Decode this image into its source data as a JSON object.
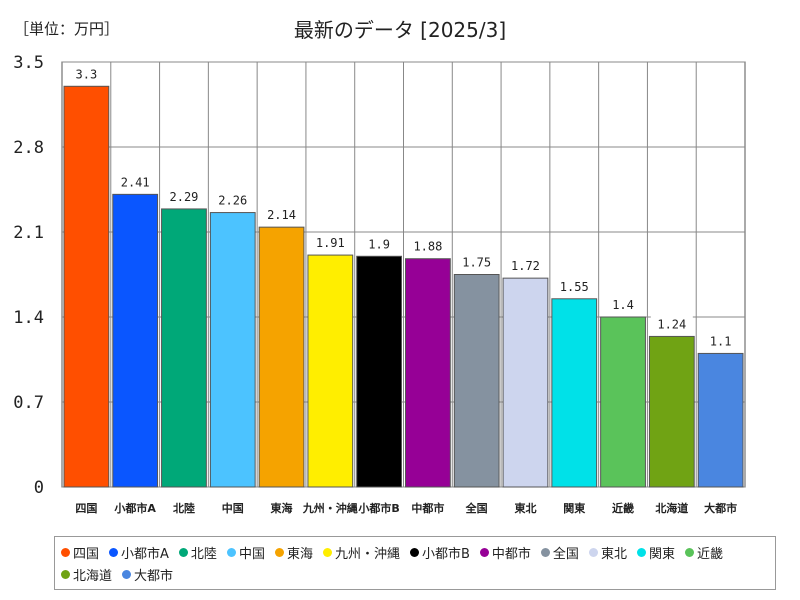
{
  "chart_data": {
    "type": "bar",
    "title": "最新のデータ [2025/3]",
    "unit_label": "［単位：万円］",
    "categories": [
      "四国",
      "小都市A",
      "北陸",
      "中国",
      "東海",
      "九州・沖縄",
      "小都市B",
      "中都市",
      "全国",
      "東北",
      "関東",
      "近畿",
      "北海道",
      "大都市"
    ],
    "values": [
      3.3,
      2.41,
      2.29,
      2.26,
      2.14,
      1.91,
      1.9,
      1.88,
      1.75,
      1.72,
      1.55,
      1.4,
      1.24,
      1.1
    ],
    "value_labels": [
      "3.3",
      "2.41",
      "2.29",
      "2.26",
      "2.14",
      "1.91",
      "1.9",
      "1.88",
      "1.75",
      "1.72",
      "1.55",
      "1.4",
      "1.24",
      "1.1"
    ],
    "colors": [
      "#ff4f00",
      "#0a56ff",
      "#00a878",
      "#4cc3ff",
      "#f5a300",
      "#ffee00",
      "#000000",
      "#960096",
      "#8592a0",
      "#cdd5ee",
      "#00e1e8",
      "#5ac35a",
      "#70a314",
      "#4a86e0"
    ],
    "ylim": [
      0,
      3.5
    ],
    "yticks": [
      "0",
      "0.7",
      "1.4",
      "2.1",
      "2.8",
      "3.5"
    ],
    "ytick_values": [
      0,
      0.7,
      1.4,
      2.1,
      2.8,
      3.5
    ],
    "grid": true,
    "legend_position": "bottom",
    "xlabel": "",
    "ylabel": ""
  }
}
